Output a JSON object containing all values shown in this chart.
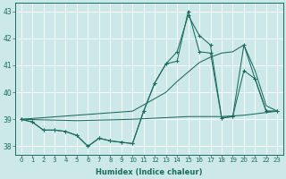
{
  "title": "",
  "xlabel": "Humidex (Indice chaleur)",
  "ylabel": "",
  "bg_color": "#cce8e8",
  "line_color": "#1a6b5e",
  "xlim": [
    -0.5,
    23.5
  ],
  "ylim": [
    37.7,
    43.3
  ],
  "yticks": [
    38,
    39,
    40,
    41,
    42,
    43
  ],
  "xticks": [
    0,
    1,
    2,
    3,
    4,
    5,
    6,
    7,
    8,
    9,
    10,
    11,
    12,
    13,
    14,
    15,
    16,
    17,
    18,
    19,
    20,
    21,
    22,
    23
  ],
  "series": [
    {
      "x": [
        0,
        1,
        2,
        3,
        4,
        5,
        6,
        7,
        8,
        9,
        10,
        11,
        12,
        13,
        14,
        15,
        16,
        17,
        18,
        19,
        20,
        21,
        22,
        23
      ],
      "y": [
        39.0,
        38.9,
        38.6,
        38.6,
        38.55,
        38.4,
        38.0,
        38.3,
        38.2,
        38.15,
        38.1,
        39.3,
        40.35,
        41.05,
        41.15,
        43.0,
        41.5,
        41.45,
        39.05,
        39.1,
        40.8,
        40.5,
        39.3,
        39.3
      ],
      "marker": true
    },
    {
      "x": [
        0,
        1,
        2,
        3,
        4,
        5,
        6,
        7,
        8,
        9,
        10,
        11,
        12,
        13,
        14,
        15,
        16,
        17,
        18,
        19,
        20,
        21,
        22,
        23
      ],
      "y": [
        39.0,
        38.9,
        38.6,
        38.6,
        38.55,
        38.4,
        38.0,
        38.3,
        38.2,
        38.15,
        38.1,
        39.3,
        40.35,
        41.05,
        41.5,
        42.85,
        42.1,
        41.75,
        39.05,
        39.1,
        41.75,
        40.5,
        39.3,
        39.3
      ],
      "marker": true
    },
    {
      "x": [
        0,
        10,
        13,
        14,
        15,
        16,
        17,
        18,
        19,
        20,
        21,
        22,
        23
      ],
      "y": [
        39.0,
        39.3,
        40.0,
        40.4,
        40.75,
        41.1,
        41.3,
        41.45,
        41.5,
        41.75,
        40.8,
        39.5,
        39.3
      ],
      "marker": false
    },
    {
      "x": [
        0,
        5,
        10,
        15,
        18,
        20,
        22,
        23
      ],
      "y": [
        39.0,
        38.95,
        39.0,
        39.1,
        39.1,
        39.15,
        39.25,
        39.3
      ],
      "marker": false
    }
  ]
}
